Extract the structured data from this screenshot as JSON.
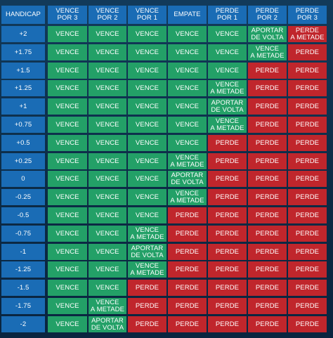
{
  "colors": {
    "header": "#1a6cb5",
    "handicap": "#1a6cb5",
    "win": "#23a067",
    "half": "#23a067",
    "lose": "#c0262c"
  },
  "headers": [
    "HANDICAP",
    "VENCE\nPOR 3",
    "VENCE\nPOR 2",
    "VENCE\nPOR 1",
    "EMPATE",
    "PERDE\nPOR 1",
    "PERDE\nPOR 2",
    "PERDE\nPOR 3"
  ],
  "rows": [
    {
      "handicap": "+2",
      "cells": [
        "VENCE",
        "VENCE",
        "VENCE",
        "VENCE",
        "VENCE",
        "APORTAR\nDE VOLTA",
        "PERDE\nA METADE"
      ]
    },
    {
      "handicap": "+1.75",
      "cells": [
        "VENCE",
        "VENCE",
        "VENCE",
        "VENCE",
        "VENCE",
        "VENCE\nA METADE",
        "PERDE"
      ]
    },
    {
      "handicap": "+1.5",
      "cells": [
        "VENCE",
        "VENCE",
        "VENCE",
        "VENCE",
        "VENCE",
        "PERDE",
        "PERDE"
      ]
    },
    {
      "handicap": "+1.25",
      "cells": [
        "VENCE",
        "VENCE",
        "VENCE",
        "VENCE",
        "VENCE\nA METADE",
        "PERDE",
        "PERDE"
      ]
    },
    {
      "handicap": "+1",
      "cells": [
        "VENCE",
        "VENCE",
        "VENCE",
        "VENCE",
        "APORTAR\nDE VOLTA",
        "PERDE",
        "PERDE"
      ]
    },
    {
      "handicap": "+0.75",
      "cells": [
        "VENCE",
        "VENCE",
        "VENCE",
        "VENCE",
        "VENCE\nA METADE",
        "PERDE",
        "PERDE"
      ]
    },
    {
      "handicap": "+0.5",
      "cells": [
        "VENCE",
        "VENCE",
        "VENCE",
        "VENCE",
        "PERDE",
        "PERDE",
        "PERDE"
      ]
    },
    {
      "handicap": "+0.25",
      "cells": [
        "VENCE",
        "VENCE",
        "VENCE",
        "VENCE\nA METADE",
        "PERDE",
        "PERDE",
        "PERDE"
      ]
    },
    {
      "handicap": "0",
      "cells": [
        "VENCE",
        "VENCE",
        "VENCE",
        "APORTAR\nDE VOLTA",
        "PERDE",
        "PERDE",
        "PERDE"
      ]
    },
    {
      "handicap": "-0.25",
      "cells": [
        "VENCE",
        "VENCE",
        "VENCE",
        "VENCE\nA METADE",
        "PERDE",
        "PERDE",
        "PERDE"
      ]
    },
    {
      "handicap": "-0.5",
      "cells": [
        "VENCE",
        "VENCE",
        "VENCE",
        "PERDE",
        "PERDE",
        "PERDE",
        "PERDE"
      ]
    },
    {
      "handicap": "-0.75",
      "cells": [
        "VENCE",
        "VENCE",
        "VENCE\nA METADE",
        "PERDE",
        "PERDE",
        "PERDE",
        "PERDE"
      ]
    },
    {
      "handicap": "-1",
      "cells": [
        "VENCE",
        "VENCE",
        "APORTAR\nDE VOLTA",
        "PERDE",
        "PERDE",
        "PERDE",
        "PERDE"
      ]
    },
    {
      "handicap": "-1.25",
      "cells": [
        "VENCE",
        "VENCE",
        "VENCE\nA METADE",
        "PERDE",
        "PERDE",
        "PERDE",
        "PERDE"
      ]
    },
    {
      "handicap": "-1.5",
      "cells": [
        "VENCE",
        "VENCE",
        "PERDE",
        "PERDE",
        "PERDE",
        "PERDE",
        "PERDE"
      ]
    },
    {
      "handicap": "-1.75",
      "cells": [
        "VENCE",
        "VENCE\nA METADE",
        "PERDE",
        "PERDE",
        "PERDE",
        "PERDE",
        "PERDE"
      ]
    },
    {
      "handicap": "-2",
      "cells": [
        "VENCE",
        "APORTAR\nDE VOLTA",
        "PERDE",
        "PERDE",
        "PERDE",
        "PERDE",
        "PERDE"
      ]
    }
  ]
}
